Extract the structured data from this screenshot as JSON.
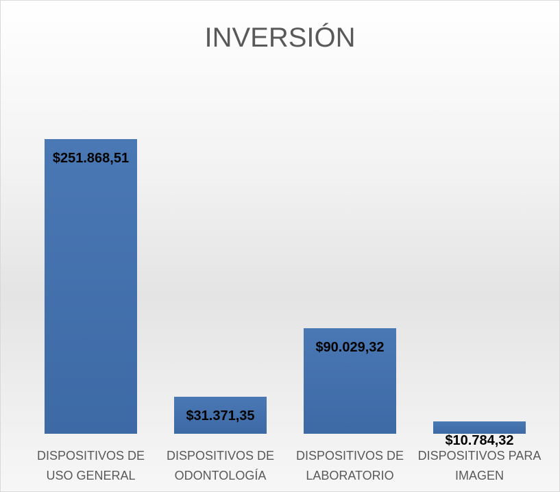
{
  "chart_data": {
    "type": "bar",
    "title": "INVERSIÓN",
    "categories": [
      "DISPOSITIVOS DE USO GENERAL",
      "DISPOSITIVOS DE ODONTOLOGÍA",
      "DISPOSITIVOS DE LABORATORIO",
      "DISPOSITIVOS PARA IMAGEN"
    ],
    "values": [
      251868.51,
      31371.35,
      90029.32,
      10784.32
    ],
    "value_labels": [
      "$251.868,51",
      "$31.371,35",
      "$90.029,32",
      "$10.784,32"
    ],
    "color": "#4a78b4"
  }
}
